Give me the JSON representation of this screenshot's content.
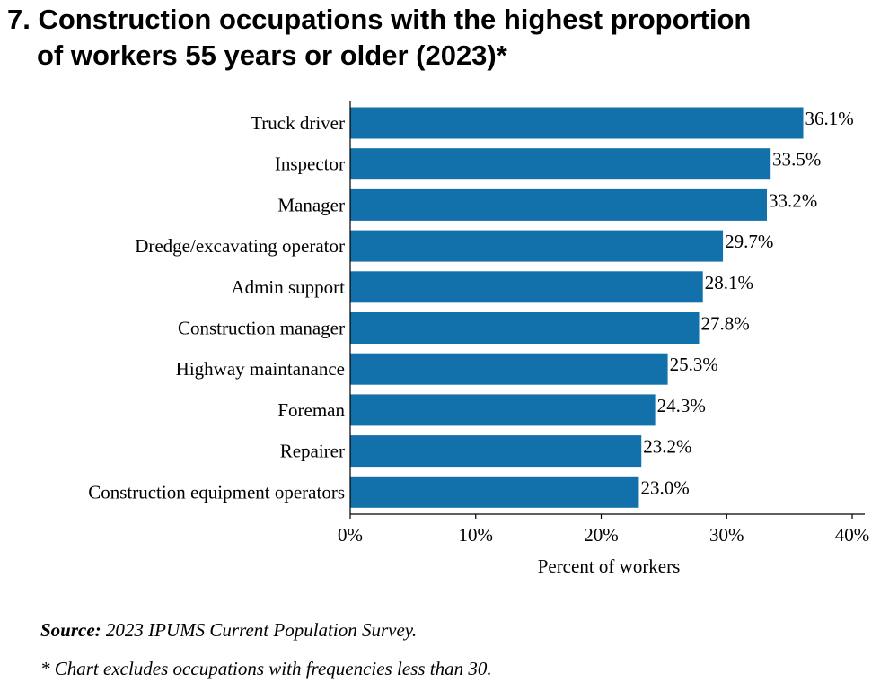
{
  "title": {
    "line1": "7. Construction occupations with the highest proportion",
    "line2": "of workers 55 years or older (2023)*"
  },
  "chart_data": {
    "type": "bar",
    "orientation": "horizontal",
    "categories": [
      "Truck driver",
      "Inspector",
      "Manager",
      "Dredge/excavating operator",
      "Admin support",
      "Construction manager",
      "Highway maintanance",
      "Foreman",
      "Repairer",
      "Construction equipment operators"
    ],
    "values": [
      36.1,
      33.5,
      33.2,
      29.7,
      28.1,
      27.8,
      25.3,
      24.3,
      23.2,
      23.0
    ],
    "value_labels": [
      "36.1%",
      "33.5%",
      "33.2%",
      "29.7%",
      "28.1%",
      "27.8%",
      "25.3%",
      "24.3%",
      "23.2%",
      "23.0%"
    ],
    "xlim": [
      0,
      41
    ],
    "xticks": [
      0,
      10,
      20,
      30,
      40
    ],
    "xtick_labels": [
      "0%",
      "10%",
      "20%",
      "30%",
      "40%"
    ],
    "xlabel": "Percent of workers",
    "ylabel": "",
    "bar_color": "#1271aa",
    "grid": false,
    "legend": "none"
  },
  "footer": {
    "source_label": "Source:",
    "source_text": " 2023 IPUMS Current Population Survey.",
    "note": "* Chart excludes occupations with frequencies less than 30."
  }
}
